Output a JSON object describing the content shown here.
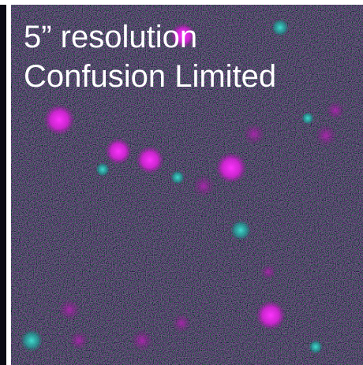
{
  "panel": {
    "lines": [
      "5” resolution",
      "Confusion Limited"
    ]
  }
}
